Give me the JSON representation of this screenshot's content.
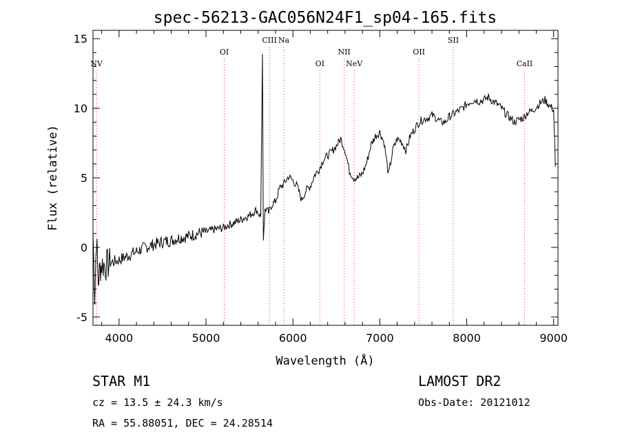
{
  "chart_data": {
    "type": "line",
    "title": "spec-56213-GAC056N24F1_sp04-165.fits",
    "xlabel": "Wavelength (Å)",
    "ylabel": "Flux (relative)",
    "xlim": [
      3700,
      9050
    ],
    "ylim": [
      -5.6,
      15.6
    ],
    "x_ticks": [
      4000,
      5000,
      6000,
      7000,
      8000,
      9000
    ],
    "y_ticks": [
      -5,
      0,
      5,
      10,
      15
    ],
    "grid": false,
    "legend": "none",
    "line_color": "#000000",
    "marker_color": "#e03030",
    "spectral_lines": [
      {
        "label": "NV",
        "wavelength": 3740,
        "row": 3
      },
      {
        "label": "OI",
        "wavelength": 5210,
        "row": 2
      },
      {
        "label": "CIII",
        "wavelength": 5730,
        "row": 1
      },
      {
        "label": "Na",
        "wavelength": 5895,
        "row": 1
      },
      {
        "label": "OI",
        "wavelength": 6310,
        "row": 3
      },
      {
        "label": "NII",
        "wavelength": 6590,
        "row": 2
      },
      {
        "label": "NeV",
        "wavelength": 6705,
        "row": 3
      },
      {
        "label": "OII",
        "wavelength": 7450,
        "row": 2
      },
      {
        "label": "SII",
        "wavelength": 7845,
        "row": 1
      },
      {
        "label": "CaII",
        "wavelength": 8665,
        "row": 3
      }
    ],
    "series": [
      {
        "x": [
          3700,
          3720,
          3740,
          3760,
          3780,
          3800,
          3850,
          3900,
          3950,
          4000,
          4100,
          4200,
          4300,
          4400,
          4500,
          4600,
          4700,
          4800,
          4900,
          5000,
          5100,
          5200,
          5250,
          5300,
          5400,
          5500,
          5580,
          5630,
          5650,
          5660,
          5680,
          5720,
          5760,
          5800,
          5850,
          5900,
          5950,
          6000,
          6050,
          6100,
          6150,
          6200,
          6250,
          6300,
          6350,
          6400,
          6450,
          6500,
          6550,
          6600,
          6650,
          6700,
          6750,
          6800,
          6850,
          6900,
          6950,
          7000,
          7050,
          7100,
          7150,
          7200,
          7250,
          7300,
          7350,
          7400,
          7450,
          7500,
          7550,
          7600,
          7650,
          7700,
          7750,
          7800,
          7850,
          7900,
          7950,
          8000,
          8050,
          8100,
          8150,
          8200,
          8250,
          8300,
          8350,
          8400,
          8450,
          8500,
          8550,
          8600,
          8650,
          8700,
          8750,
          8800,
          8850,
          8900,
          8950,
          9000,
          9020
        ],
        "y": [
          1.0,
          -3.5,
          0.8,
          -2.5,
          -1.5,
          -1.2,
          -1.3,
          -1.1,
          -1.0,
          -0.9,
          -0.6,
          -0.3,
          0.0,
          0.2,
          0.4,
          0.5,
          0.7,
          0.8,
          1.0,
          1.1,
          1.3,
          1.4,
          1.6,
          1.7,
          2.0,
          2.3,
          2.7,
          2.2,
          13.9,
          0.5,
          2.8,
          2.5,
          3.1,
          3.3,
          4.3,
          4.6,
          5.1,
          4.8,
          4.4,
          3.4,
          4.1,
          4.4,
          5.2,
          5.6,
          6.3,
          6.6,
          6.9,
          7.3,
          7.8,
          7.0,
          5.5,
          5.0,
          5.0,
          5.3,
          6.1,
          7.4,
          8.0,
          8.3,
          7.5,
          5.2,
          7.0,
          7.8,
          7.6,
          7.0,
          8.0,
          8.5,
          9.0,
          9.2,
          9.3,
          9.5,
          9.3,
          9.0,
          9.0,
          9.4,
          9.6,
          9.8,
          10.0,
          10.3,
          10.5,
          10.6,
          10.5,
          10.6,
          10.8,
          10.5,
          10.3,
          10.0,
          9.6,
          9.3,
          9.0,
          9.2,
          9.3,
          9.7,
          9.8,
          10.1,
          10.4,
          10.6,
          10.2,
          9.9,
          5.8
        ]
      }
    ]
  },
  "info": {
    "class_text": "STAR    M1",
    "survey": "LAMOST DR2",
    "cz": "cz = 13.5 ± 24.3 km/s",
    "obs_date": "Obs-Date: 20121012",
    "coords": "RA =  55.88051, DEC =  24.28514"
  }
}
